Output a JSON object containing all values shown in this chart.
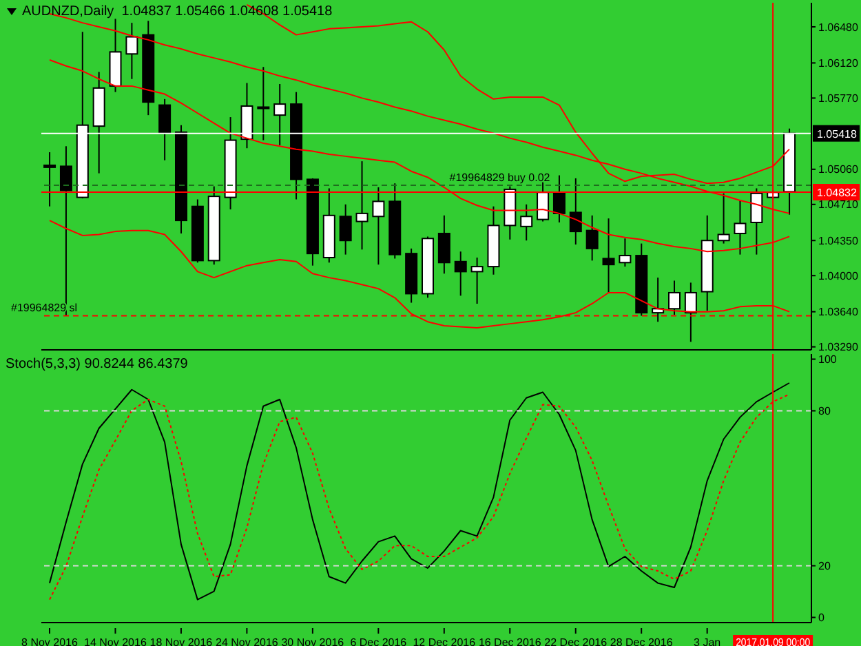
{
  "chart_data": [
    {
      "type": "candlestick",
      "title": "AUDNZD,Daily  1.04837 1.05466 1.04608 1.05418",
      "categories": [
        "8 Nov 2016",
        null,
        null,
        null,
        "14 Nov 2016",
        null,
        null,
        null,
        "18 Nov 2016",
        null,
        null,
        null,
        "24 Nov 2016",
        null,
        null,
        null,
        "30 Nov 2016",
        null,
        null,
        null,
        "6 Dec 2016",
        null,
        null,
        null,
        "12 Dec 2016",
        null,
        null,
        null,
        "16 Dec 2016",
        null,
        null,
        null,
        "22 Dec 2016",
        null,
        null,
        null,
        "28 Dec 2016",
        null,
        null,
        null,
        "3 Jan",
        null,
        null,
        null,
        "2017.01.09 00:00",
        null
      ],
      "ohlc": [
        [
          1.051,
          1.0523,
          1.0469,
          1.0508
        ],
        [
          1.0509,
          1.0529,
          1.036,
          1.0485
        ],
        [
          1.0478,
          1.0643,
          1.0477,
          1.055
        ],
        [
          1.0549,
          1.0603,
          1.0502,
          1.0587
        ],
        [
          1.0589,
          1.0656,
          1.0583,
          1.0623
        ],
        [
          1.0621,
          1.0652,
          1.0596,
          1.0638
        ],
        [
          1.064,
          1.0654,
          1.056,
          1.0573
        ],
        [
          1.057,
          1.0576,
          1.0515,
          1.0542
        ],
        [
          1.0543,
          1.055,
          1.0442,
          1.0455
        ],
        [
          1.0469,
          1.0476,
          1.0413,
          1.0415
        ],
        [
          1.0415,
          1.0489,
          1.0411,
          1.0479
        ],
        [
          1.0478,
          1.0558,
          1.0466,
          1.0535
        ],
        [
          1.0536,
          1.0592,
          1.0527,
          1.0569
        ],
        [
          1.0568,
          1.0608,
          1.0535,
          1.0568
        ],
        [
          1.056,
          1.0591,
          1.053,
          1.0571
        ],
        [
          1.0571,
          1.0583,
          1.0476,
          1.0496
        ],
        [
          1.0496,
          1.0497,
          1.041,
          1.0422
        ],
        [
          1.0418,
          1.0487,
          1.0413,
          1.046
        ],
        [
          1.0459,
          1.0471,
          1.0421,
          1.0435
        ],
        [
          1.0454,
          1.0514,
          1.0426,
          1.0462
        ],
        [
          1.0459,
          1.0488,
          1.0411,
          1.0474
        ],
        [
          1.0474,
          1.0492,
          1.0417,
          1.0421
        ],
        [
          1.0422,
          1.0427,
          1.0373,
          1.0382
        ],
        [
          1.0382,
          1.0439,
          1.0378,
          1.0437
        ],
        [
          1.0442,
          1.046,
          1.0402,
          1.0413
        ],
        [
          1.0414,
          1.0424,
          1.038,
          1.0404
        ],
        [
          1.0404,
          1.0418,
          1.0372,
          1.0409
        ],
        [
          1.0409,
          1.0469,
          1.0401,
          1.045
        ],
        [
          1.045,
          1.0489,
          1.0436,
          1.0486
        ],
        [
          1.0449,
          1.0471,
          1.0435,
          1.0459
        ],
        [
          1.0456,
          1.0497,
          1.0454,
          1.0483
        ],
        [
          1.0483,
          1.05,
          1.0453,
          1.0462
        ],
        [
          1.0463,
          1.0497,
          1.0431,
          1.0444
        ],
        [
          1.0445,
          1.046,
          1.0415,
          1.0427
        ],
        [
          1.0417,
          1.0457,
          1.0383,
          1.0411
        ],
        [
          1.0413,
          1.0437,
          1.0409,
          1.042
        ],
        [
          1.042,
          1.0432,
          1.036,
          1.0363
        ],
        [
          1.0363,
          1.0398,
          1.0354,
          1.0367
        ],
        [
          1.0367,
          1.0395,
          1.0361,
          1.0383
        ],
        [
          1.0363,
          1.0393,
          1.0334,
          1.0383
        ],
        [
          1.0384,
          1.046,
          1.0365,
          1.0435
        ],
        [
          1.0435,
          1.0482,
          1.0432,
          1.0441
        ],
        [
          1.0442,
          1.0475,
          1.0421,
          1.0452
        ],
        [
          1.0453,
          1.0487,
          1.0421,
          1.0482
        ],
        [
          1.0478,
          1.0485,
          1.0477,
          1.0483
        ],
        [
          1.04837,
          1.05466,
          1.04608,
          1.05418
        ]
      ],
      "series": [
        {
          "type": "line",
          "color": "#ff0000",
          "values": [
            null,
            null,
            null,
            null,
            null,
            null,
            null,
            null,
            null,
            null,
            null,
            null,
            1.067,
            1.0661,
            1.065,
            1.064,
            1.0643,
            1.0646,
            1.0647,
            1.0648,
            1.0649,
            1.0651,
            1.0653,
            1.0643,
            1.0625,
            1.0599,
            1.0586,
            1.0576,
            1.0578,
            1.0578,
            1.0578,
            1.057,
            1.0543,
            1.0522,
            1.0502,
            1.0494,
            1.0499,
            1.05,
            1.0501,
            1.0496,
            1.0492,
            1.0493,
            1.0497,
            1.0503,
            1.0509,
            1.0526
          ]
        },
        {
          "type": "line",
          "color": "#ff0000",
          "values": [
            1.0615,
            1.0609,
            1.0604,
            1.0596,
            1.0589,
            1.0589,
            1.0585,
            1.0581,
            1.0572,
            1.0562,
            1.0552,
            1.0542,
            1.0537,
            1.0532,
            1.0529,
            1.0526,
            1.0524,
            1.0521,
            1.0519,
            1.0517,
            1.0515,
            1.0513,
            1.0504,
            1.0498,
            1.0488,
            1.0477,
            1.047,
            1.0465,
            1.0465,
            1.0465,
            1.0466,
            1.0462,
            1.0456,
            1.0448,
            1.0441,
            1.0438,
            1.0436,
            1.0432,
            1.0429,
            1.0427,
            1.0424,
            1.0425,
            1.0427,
            1.043,
            1.0433,
            1.0439
          ]
        },
        {
          "type": "line",
          "color": "#ff0000",
          "values": [
            1.0455,
            1.0447,
            1.044,
            1.0441,
            1.0444,
            1.0445,
            1.0445,
            1.0441,
            1.0424,
            1.0404,
            1.0398,
            1.0404,
            1.041,
            1.0413,
            1.0416,
            1.0414,
            1.0402,
            1.0398,
            1.0395,
            1.0391,
            1.0387,
            1.0378,
            1.0362,
            1.0354,
            1.035,
            1.0349,
            1.0348,
            1.035,
            1.0352,
            1.0354,
            1.0356,
            1.0359,
            1.0363,
            1.0372,
            1.0383,
            1.0383,
            1.0375,
            1.0367,
            1.0365,
            1.0364,
            1.0364,
            1.0365,
            1.0369,
            1.037,
            1.037,
            1.0364
          ]
        },
        {
          "type": "line",
          "color": "#ff0000",
          "values": [
            1.0661,
            1.0657,
            1.0652,
            1.0648,
            1.0644,
            1.0639,
            1.0635,
            1.063,
            1.0626,
            1.0621,
            1.0617,
            1.0613,
            1.0608,
            1.0604,
            1.0599,
            1.0595,
            1.059,
            1.0586,
            1.0582,
            1.0577,
            1.0573,
            1.0568,
            1.0564,
            1.0559,
            1.0555,
            1.0551,
            1.0546,
            1.0542,
            1.0537,
            1.0533,
            1.0528,
            1.0524,
            1.052,
            1.0515,
            1.0511,
            1.0506,
            1.0502,
            1.0497,
            1.0493,
            1.0489,
            1.0484,
            1.048,
            1.0475,
            1.0471,
            1.0466,
            1.0462
          ]
        }
      ],
      "ylim": [
        1.0326,
        1.0672
      ],
      "yticks": [
        {
          "value": 1.0648,
          "label": "1.06480"
        },
        {
          "value": 1.0612,
          "label": "1.06120"
        },
        {
          "value": 1.0577,
          "label": "1.05770"
        },
        {
          "value": 1.0506,
          "label": "1.05060"
        },
        {
          "value": 1.0471,
          "label": "1.04710"
        },
        {
          "value": 1.0435,
          "label": "1.04350"
        },
        {
          "value": 1.04,
          "label": "1.04000"
        },
        {
          "value": 1.0364,
          "label": "1.03640"
        },
        {
          "value": 1.0329,
          "label": "1.03290"
        }
      ],
      "tick_labels": "y",
      "ref_lines": [
        {
          "axis": "y",
          "value": 1.05418,
          "label": "1.05418",
          "color": "#ffffff"
        },
        {
          "axis": "y",
          "value": 1.04832,
          "label": "1.04832",
          "color": "#ff0000"
        },
        {
          "axis": "y",
          "value": 1.049,
          "label": "#19964829 buy 0.02",
          "color": "#1e6e1e",
          "line_style": "dashed"
        },
        {
          "axis": "y",
          "value": 1.036,
          "label": "#19964829 sl",
          "color": "#ff0000",
          "line_style": "dashed"
        },
        {
          "axis": "x",
          "value": "2017.01.09 00:00",
          "color": "#ff0000"
        }
      ]
    },
    {
      "type": "line",
      "title": "Stoch(5,3,3) 90.8244 86.4379",
      "categories": [
        "8 Nov 2016",
        null,
        null,
        null,
        "14 Nov 2016",
        null,
        null,
        null,
        "18 Nov 2016",
        null,
        null,
        null,
        "24 Nov 2016",
        null,
        null,
        null,
        "30 Nov 2016",
        null,
        null,
        null,
        "6 Dec 2016",
        null,
        null,
        null,
        "12 Dec 2016",
        null,
        null,
        null,
        "16 Dec 2016",
        null,
        null,
        null,
        "22 Dec 2016",
        null,
        null,
        null,
        "28 Dec 2016",
        null,
        null,
        null,
        "3 Jan",
        null,
        null,
        null,
        "2017.01.09 00:00",
        null
      ],
      "series": [
        {
          "color": "#000000",
          "line_style": "solid",
          "values": [
            13.3,
            36.8,
            59.3,
            73.2,
            80.7,
            88.2,
            84.4,
            67.9,
            28.3,
            6.9,
            10.1,
            28.3,
            58.7,
            81.8,
            84.4,
            65.7,
            37.9,
            15.8,
            13.3,
            21.8,
            29.3,
            31.5,
            22.7,
            19.1,
            25.7,
            33.6,
            31.5,
            46.5,
            76.4,
            85.0,
            87.2,
            78.6,
            64.7,
            37.9,
            19.7,
            23.6,
            18.0,
            13.3,
            11.6,
            27.2,
            52.9,
            69.0,
            77.5,
            83.5,
            87.2,
            90.8
          ]
        },
        {
          "color": "#ff0000",
          "line_style": "dotted",
          "values": [
            6.9,
            19.7,
            39.0,
            57.2,
            68.5,
            80.1,
            84.4,
            81.8,
            60.4,
            32.5,
            15.8,
            16.5,
            34.7,
            59.3,
            75.8,
            77.5,
            63.6,
            42.2,
            26.6,
            18.6,
            21.8,
            27.8,
            27.8,
            23.6,
            23.6,
            27.2,
            30.8,
            39.0,
            55.7,
            69.4,
            82.4,
            81.8,
            73.7,
            60.8,
            43.3,
            26.6,
            19.7,
            18.0,
            14.8,
            18.0,
            33.6,
            52.9,
            67.9,
            77.5,
            83.5,
            86.4
          ]
        }
      ],
      "ylim": [
        -2,
        102
      ],
      "yticks": [
        0,
        20,
        80,
        100
      ],
      "ref_lines": [
        {
          "axis": "y",
          "value": 80,
          "color": "#d8d8d8",
          "line_style": "dashed"
        },
        {
          "axis": "y",
          "value": 20,
          "color": "#d8d8d8",
          "line_style": "dashed"
        },
        {
          "axis": "x",
          "value": "2017.01.09 00:00",
          "color": "#ff0000"
        }
      ]
    }
  ]
}
